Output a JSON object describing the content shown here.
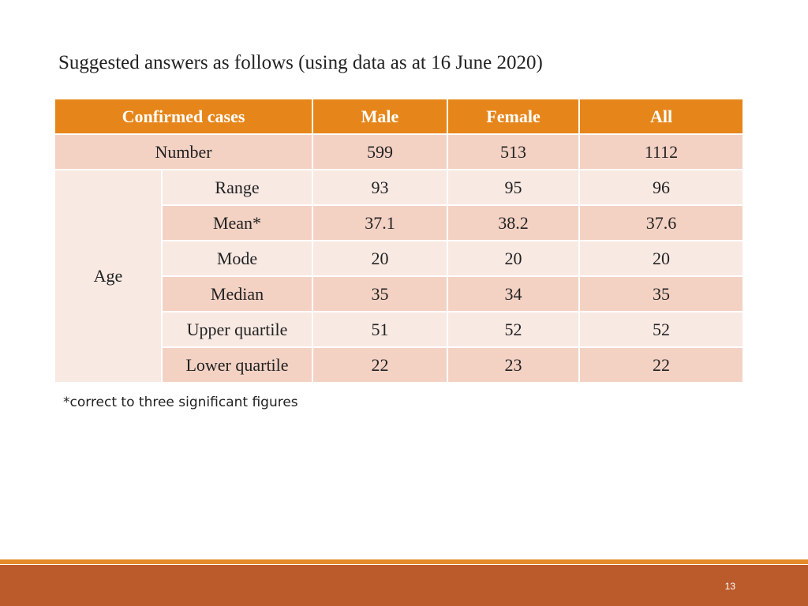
{
  "heading": "Suggested answers as follows (using data as at 16 June 2020)",
  "table": {
    "headers": [
      "Confirmed cases",
      "Male",
      "Female",
      "All"
    ],
    "number_row": {
      "label": "Number",
      "values": [
        "599",
        "513",
        "1112"
      ]
    },
    "age_label": "Age",
    "age_rows": [
      {
        "label": "Range",
        "values": [
          "93",
          "95",
          "96"
        ]
      },
      {
        "label": "Mean*",
        "values": [
          "37.1",
          "38.2",
          "37.6"
        ]
      },
      {
        "label": "Mode",
        "values": [
          "20",
          "20",
          "20"
        ]
      },
      {
        "label": "Median",
        "values": [
          "35",
          "34",
          "35"
        ]
      },
      {
        "label": "Upper quartile",
        "values": [
          "51",
          "52",
          "52"
        ]
      },
      {
        "label": "Lower quartile",
        "values": [
          "22",
          "23",
          "22"
        ]
      }
    ]
  },
  "footnote": "*correct to three significant figures",
  "page_number": "13",
  "colors": {
    "header_fill": "#e6861a",
    "row_dark": "#f3d2c4",
    "row_light": "#f8e9e3",
    "footer_band": "#bb5a2b",
    "footer_stripe": "#e58a2a"
  }
}
